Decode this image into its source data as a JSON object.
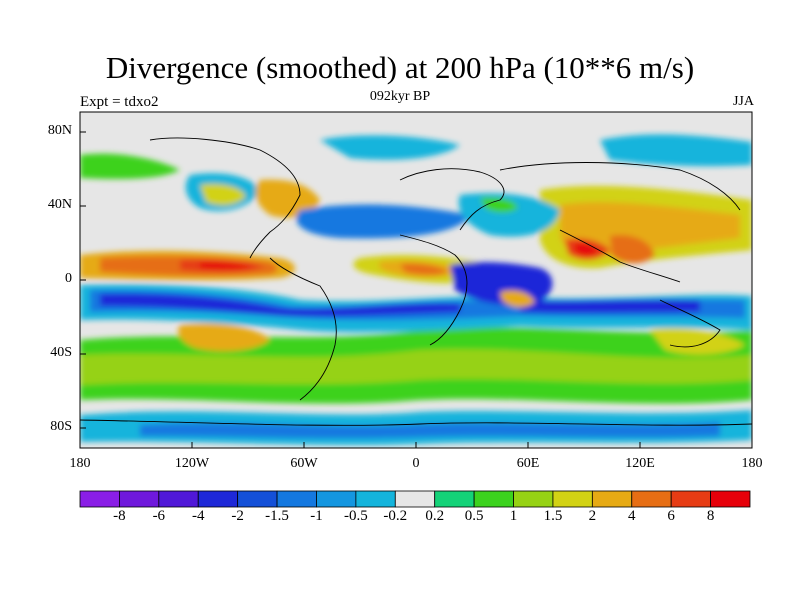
{
  "title": "Divergence (smoothed) at 200 hPa (10**6 m/s)",
  "subtitle_left": "Expt = tdxo2",
  "subtitle_center": "092kyr BP",
  "subtitle_right": "JJA",
  "y_axis": {
    "ticks": [
      "80N",
      "40N",
      "0",
      "40S",
      "80S"
    ]
  },
  "x_axis": {
    "ticks": [
      "180",
      "120W",
      "60W",
      "0",
      "60E",
      "120E",
      "180"
    ]
  },
  "colorbar": {
    "labels": [
      "-8",
      "-6",
      "-4",
      "-2",
      "-1.5",
      "-1",
      "-0.5",
      "-0.2",
      "0.2",
      "0.5",
      "1",
      "1.5",
      "2",
      "4",
      "6",
      "8"
    ],
    "colors": [
      "#8a1ee6",
      "#6f18dc",
      "#5018d8",
      "#1e28d8",
      "#1450d8",
      "#1478e0",
      "#1496e0",
      "#14b4dc",
      "#e6e6e6",
      "#14d278",
      "#3cd21e",
      "#96d214",
      "#d2d214",
      "#e6aa14",
      "#e66e14",
      "#e63c14",
      "#e6000a"
    ]
  }
}
